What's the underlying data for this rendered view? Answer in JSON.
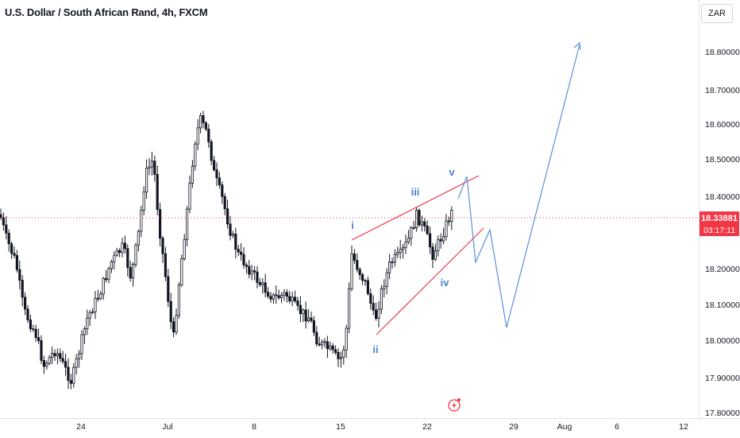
{
  "symbol_title": "U.S. Dollar / South African Rand, 4h, FXCM",
  "currency": "ZAR",
  "price_axis": {
    "ticks": [
      "18.80000",
      "18.70000",
      "18.60000",
      "18.50000",
      "18.40000",
      "18.20000",
      "18.10000",
      "18.00000",
      "17.90000",
      "17.80000"
    ]
  },
  "last_price": "18.33881",
  "countdown": "03:17:11",
  "time_axis": {
    "ticks": [
      "24",
      "Jul",
      "8",
      "15",
      "22",
      "29",
      "Aug",
      "6",
      "12"
    ]
  },
  "wave_labels": {
    "i": "i",
    "ii": "ii",
    "iii": "iii",
    "iv": "iv",
    "v": "v"
  },
  "colors": {
    "up": "#26a69a",
    "down": "#ef5350",
    "candle": "#131722",
    "wedge": "#f23645",
    "projection": "#5b8fd9",
    "last_price_line": "#f23645"
  },
  "icons": {
    "event": "lightning-event-icon"
  }
}
